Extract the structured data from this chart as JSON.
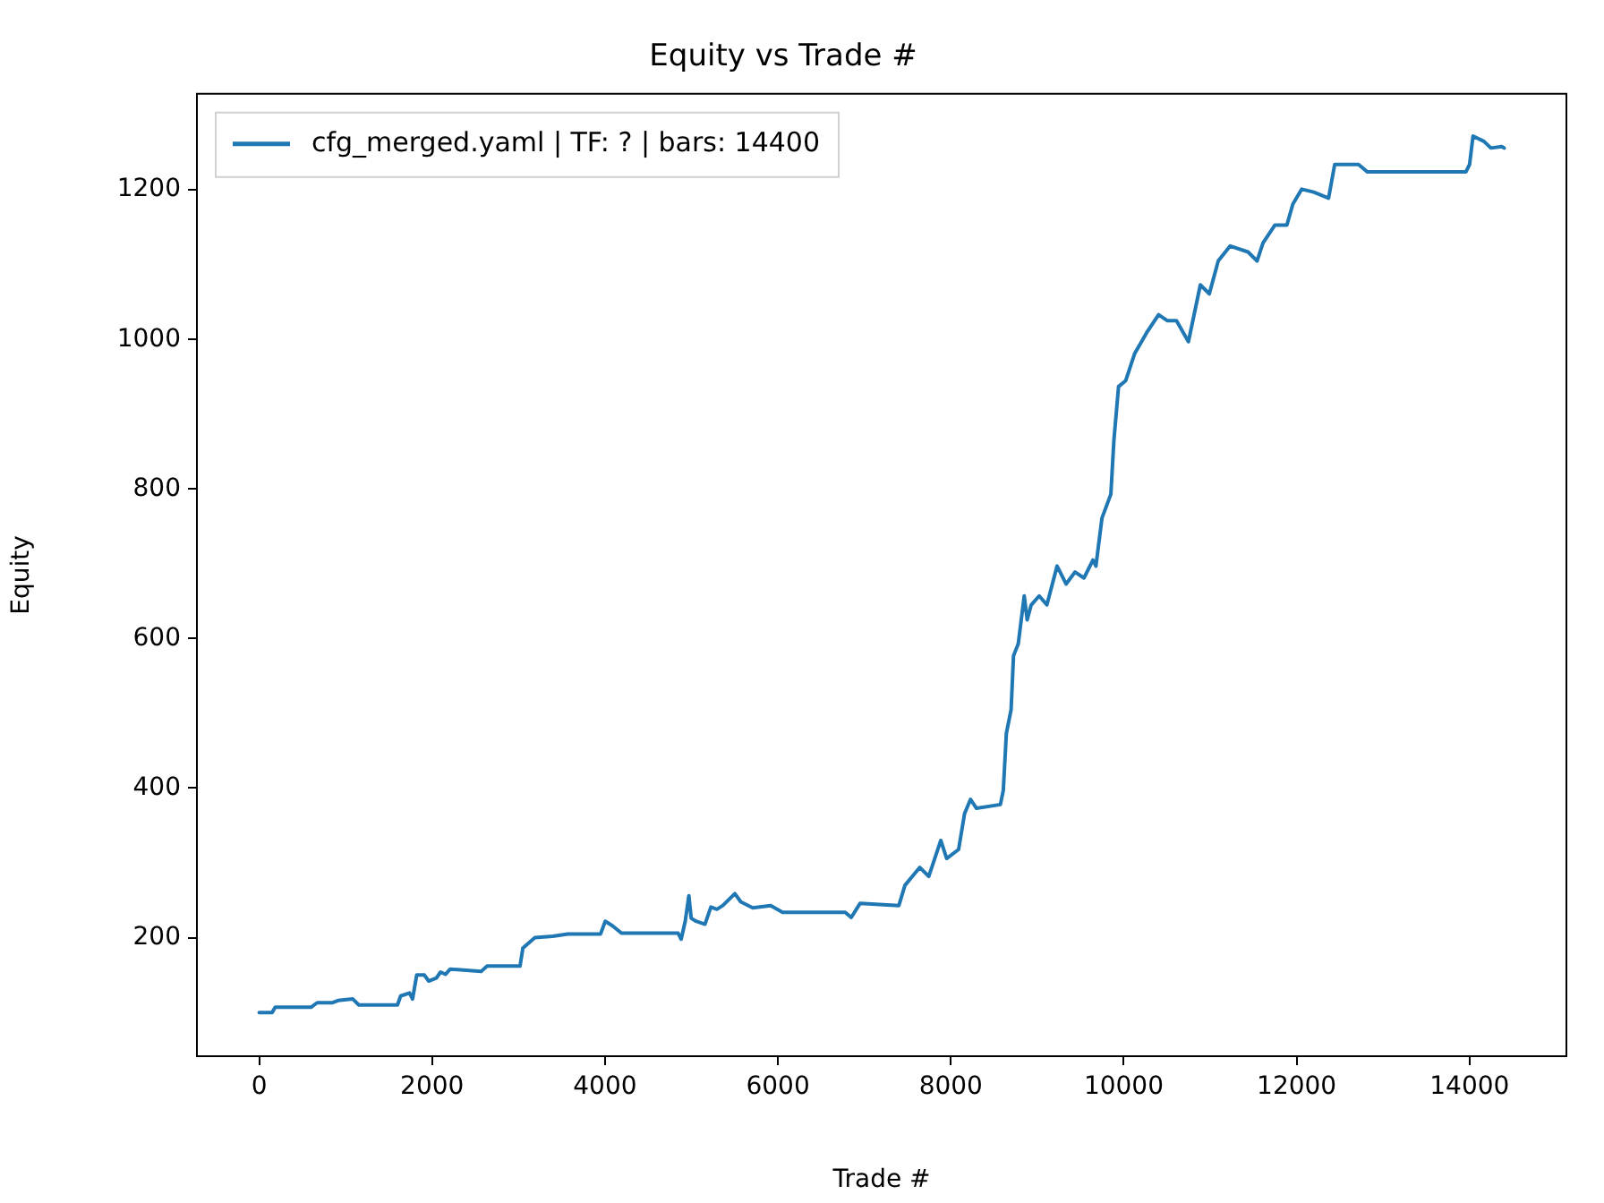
{
  "chart_data": {
    "type": "line",
    "title": "Equity vs Trade #",
    "xlabel": "Trade #",
    "ylabel": "Equity",
    "xlim": [
      -720,
      15120
    ],
    "xticks": [
      0,
      2000,
      4000,
      6000,
      8000,
      10000,
      12000,
      14000
    ],
    "ylim": [
      41.5,
      1328.5
    ],
    "yticks": [
      200,
      400,
      600,
      800,
      1000,
      1200
    ],
    "grid": false,
    "legend": "top left",
    "marker": "none",
    "line_style": "solid",
    "series": [
      {
        "name": "cfg_merged.yaml | TF: ? | bars: 14400",
        "color": "#1f77b4",
        "x": [
          0,
          150,
          186,
          600,
          670,
          843,
          911,
          1083,
          1153,
          1600,
          1636,
          1739,
          1774,
          1822,
          1911,
          1961,
          2050,
          2098,
          2154,
          2210,
          2568,
          2637,
          3017,
          3050,
          3189,
          3396,
          3568,
          3949,
          4003,
          4086,
          4190,
          4846,
          4881,
          4928,
          4970,
          4997,
          5053,
          5156,
          5225,
          5294,
          5363,
          5502,
          5570,
          5709,
          5916,
          6054,
          6778,
          6848,
          6951,
          7399,
          7469,
          7641,
          7745,
          7884,
          7952,
          8090,
          8159,
          8228,
          8297,
          8573,
          8607,
          8642,
          8697,
          8725,
          8780,
          8849,
          8883,
          8930,
          9022,
          9111,
          9229,
          9333,
          9437,
          9540,
          9644,
          9678,
          9748,
          9851,
          9886,
          9940,
          10023,
          10126,
          10265,
          10403,
          10506,
          10610,
          10748,
          10886,
          10990,
          11093,
          11231,
          11438,
          11542,
          11611,
          11749,
          11887,
          11956,
          12059,
          12197,
          12369,
          12440,
          12715,
          12819,
          13957,
          14000,
          14040,
          14165,
          14247,
          14372,
          14400
        ],
        "values": [
          100,
          100,
          107,
          107,
          113,
          113,
          116,
          118,
          110,
          110,
          122,
          126,
          118,
          150,
          150,
          142,
          146,
          154,
          151,
          158,
          155,
          162,
          162,
          186,
          200,
          202,
          205,
          205,
          222,
          216,
          206,
          206,
          198,
          222,
          256,
          226,
          222,
          218,
          241,
          238,
          243,
          259,
          248,
          240,
          243,
          234,
          234,
          227,
          246,
          243,
          270,
          294,
          282,
          330,
          306,
          318,
          366,
          385,
          373,
          378,
          397,
          473,
          505,
          577,
          593,
          657,
          625,
          645,
          657,
          645,
          697,
          673,
          689,
          681,
          705,
          697,
          761,
          793,
          865,
          937,
          945,
          981,
          1009,
          1033,
          1025,
          1025,
          997,
          1073,
          1061,
          1105,
          1125,
          1117,
          1105,
          1129,
          1153,
          1153,
          1181,
          1201,
          1197,
          1189,
          1234,
          1234,
          1224,
          1224,
          1234,
          1272,
          1265,
          1256,
          1258,
          1256
        ]
      }
    ]
  }
}
